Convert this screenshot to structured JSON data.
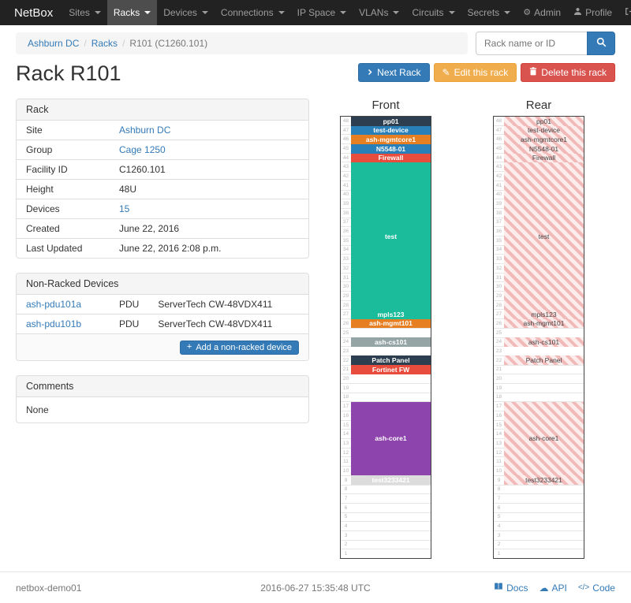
{
  "navbar": {
    "brand": "NetBox",
    "items": [
      {
        "label": "Sites",
        "active": false
      },
      {
        "label": "Racks",
        "active": true
      },
      {
        "label": "Devices",
        "active": false
      },
      {
        "label": "Connections",
        "active": false
      },
      {
        "label": "IP Space",
        "active": false
      },
      {
        "label": "VLANs",
        "active": false
      },
      {
        "label": "Circuits",
        "active": false
      },
      {
        "label": "Secrets",
        "active": false
      }
    ],
    "right": [
      {
        "label": "Admin",
        "icon": "gear"
      },
      {
        "label": "Profile",
        "icon": "user"
      },
      {
        "label": "Log out",
        "icon": "logout"
      }
    ]
  },
  "breadcrumb": {
    "items": [
      "Ashburn DC",
      "Racks",
      "R101 (C1260.101)"
    ]
  },
  "search": {
    "placeholder": "Rack name or ID"
  },
  "actions": {
    "next": "Next Rack",
    "edit": "Edit this rack",
    "delete": "Delete this rack"
  },
  "page_title": "Rack R101",
  "rack_panel": {
    "title": "Rack",
    "rows": [
      {
        "label": "Site",
        "value": "Ashburn DC",
        "link": true
      },
      {
        "label": "Group",
        "value": "Cage 1250",
        "link": true
      },
      {
        "label": "Facility ID",
        "value": "C1260.101",
        "link": false
      },
      {
        "label": "Height",
        "value": "48U",
        "link": false
      },
      {
        "label": "Devices",
        "value": "15",
        "link": true
      },
      {
        "label": "Created",
        "value": "June 22, 2016",
        "link": false
      },
      {
        "label": "Last Updated",
        "value": "June 22, 2016 2:08 p.m.",
        "link": false
      }
    ]
  },
  "nonracked_panel": {
    "title": "Non-Racked Devices",
    "devices": [
      {
        "name": "ash-pdu101a",
        "role": "PDU",
        "type": "ServerTech CW-48VDX411"
      },
      {
        "name": "ash-pdu101b",
        "role": "PDU",
        "type": "ServerTech CW-48VDX411"
      }
    ],
    "add_label": "Add a non-racked device"
  },
  "comments_panel": {
    "title": "Comments",
    "body": "None"
  },
  "elevation": {
    "front_title": "Front",
    "rear_title": "Rear",
    "units": 48,
    "front": [
      {
        "unit": 48,
        "height": 1,
        "name": "pp01",
        "color": "#2c3e50"
      },
      {
        "unit": 47,
        "height": 1,
        "name": "test-device",
        "color": "#2980b9"
      },
      {
        "unit": 46,
        "height": 1,
        "name": "ash-mgmtcore1",
        "color": "#e67e22"
      },
      {
        "unit": 45,
        "height": 1,
        "name": "N5548-01",
        "color": "#2980b9"
      },
      {
        "unit": 44,
        "height": 1,
        "name": "Firewall",
        "color": "#e74c3c"
      },
      {
        "unit": 43,
        "height": 16,
        "name": "test",
        "color": "#1abc9c"
      },
      {
        "unit": 27,
        "height": 1,
        "name": "mpls123",
        "color": "#1abc9c"
      },
      {
        "unit": 26,
        "height": 1,
        "name": "ash-mgmt101",
        "color": "#e67e22"
      },
      {
        "unit": 24,
        "height": 1,
        "name": "ash-cs101",
        "color": "#95a5a6"
      },
      {
        "unit": 22,
        "height": 1,
        "name": "Patch Panel",
        "color": "#2c3e50"
      },
      {
        "unit": 21,
        "height": 1,
        "name": "Fortinet FW",
        "color": "#e74c3c"
      },
      {
        "unit": 17,
        "height": 8,
        "name": "ash-core1",
        "color": "#8e44ad"
      },
      {
        "unit": 9,
        "height": 1,
        "name": "test3233421",
        "color": "#dcdcdc",
        "text_color": "#ffffff"
      }
    ],
    "rear": [
      {
        "unit": 48,
        "height": 1,
        "name": "pp01"
      },
      {
        "unit": 47,
        "height": 1,
        "name": "test-device"
      },
      {
        "unit": 46,
        "height": 1,
        "name": "ash-mgmtcore1"
      },
      {
        "unit": 45,
        "height": 1,
        "name": "N5548-01"
      },
      {
        "unit": 44,
        "height": 1,
        "name": "Firewall"
      },
      {
        "unit": 43,
        "height": 16,
        "name": "test"
      },
      {
        "unit": 27,
        "height": 1,
        "name": "mpls123"
      },
      {
        "unit": 26,
        "height": 1,
        "name": "ash-mgmt101"
      },
      {
        "unit": 24,
        "height": 1,
        "name": "ash-cs101"
      },
      {
        "unit": 22,
        "height": 1,
        "name": "Patch Panel"
      },
      {
        "unit": 17,
        "height": 8,
        "name": "ash-core1"
      },
      {
        "unit": 9,
        "height": 1,
        "name": "test3233421"
      }
    ]
  },
  "footer": {
    "hostname": "netbox-demo01",
    "timestamp": "2016-06-27 15:35:48 UTC",
    "links": [
      {
        "label": "Docs",
        "icon": "book"
      },
      {
        "label": "API",
        "icon": "cloud"
      },
      {
        "label": "Code",
        "icon": "code"
      }
    ]
  }
}
